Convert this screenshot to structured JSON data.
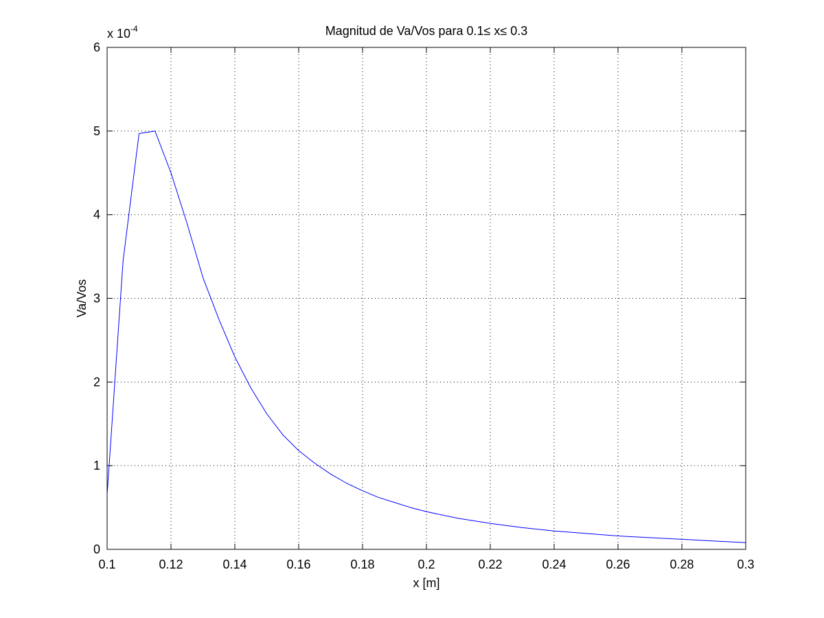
{
  "colors": {
    "background": "#ffffff",
    "axes": "#000000",
    "series_line": "#0000ff"
  },
  "chart_data": {
    "type": "line",
    "title": "Magnitud de Va/Vos para 0.1≤ x≤ 0.3",
    "xlabel": "x [m]",
    "ylabel": "Va/Vos",
    "xlim": [
      0.1,
      0.3
    ],
    "ylim": [
      0,
      6
    ],
    "y_scale_multiplier_label": "x 10",
    "y_scale_multiplier_exponent": "-4",
    "grid": true,
    "x_ticks": [
      0.1,
      0.12,
      0.14,
      0.16,
      0.18,
      0.2,
      0.22,
      0.24,
      0.26,
      0.28,
      0.3
    ],
    "x_tick_labels": [
      "0.1",
      "0.12",
      "0.14",
      "0.16",
      "0.18",
      "0.2",
      "0.22",
      "0.24",
      "0.26",
      "0.28",
      "0.3"
    ],
    "y_ticks": [
      0,
      1,
      2,
      3,
      4,
      5,
      6
    ],
    "y_tick_labels": [
      "0",
      "1",
      "2",
      "3",
      "4",
      "5",
      "6"
    ],
    "series": [
      {
        "color": "#0000ff",
        "x": [
          0.1,
          0.105,
          0.11,
          0.115,
          0.12,
          0.125,
          0.13,
          0.135,
          0.14,
          0.145,
          0.15,
          0.155,
          0.16,
          0.165,
          0.17,
          0.175,
          0.18,
          0.185,
          0.19,
          0.195,
          0.2,
          0.21,
          0.22,
          0.23,
          0.24,
          0.25,
          0.26,
          0.27,
          0.28,
          0.29,
          0.3
        ],
        "y": [
          0.65,
          3.45,
          4.97,
          5.0,
          4.5,
          3.9,
          3.25,
          2.75,
          2.3,
          1.93,
          1.62,
          1.37,
          1.18,
          1.03,
          0.9,
          0.79,
          0.7,
          0.62,
          0.56,
          0.5,
          0.45,
          0.37,
          0.31,
          0.26,
          0.22,
          0.19,
          0.16,
          0.14,
          0.12,
          0.1,
          0.08
        ]
      }
    ]
  }
}
